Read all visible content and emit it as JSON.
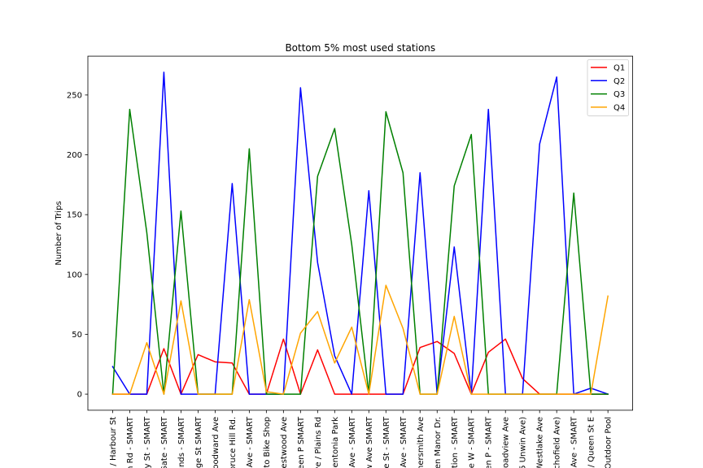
{
  "chart_data": {
    "type": "line",
    "title": "Bottom 5% most used stations",
    "xlabel": "",
    "ylabel": "Number of Trips",
    "ylim": [
      -13.45,
      282.45
    ],
    "yticks": [
      0,
      50,
      100,
      150,
      200,
      250
    ],
    "grid": false,
    "legend_position": "upper right",
    "categories": [
      "/ Harbour St",
      "n Rd - SMART",
      "y St - SMART",
      "Gate - SMART",
      "unds - SMART",
      "ge St SMART",
      "oodward Ave",
      "bruce Hill Rd.",
      "Ave - SMART",
      "to Bike Shop",
      "Westwood Ave",
      "een P SMART",
      "ve / Plains Rd",
      "ventonia Park",
      "Ave - SMART",
      "w Ave SMART",
      "e St - SMART",
      "Ave - SMART",
      "nersmith Ave",
      "en Manor Dr.",
      "tion - SMART",
      "e W - SMART",
      "en P - SMART",
      "roadview Ave",
      "5 Unwin Ave)",
      "Westlake Ave",
      "chofield Ave)",
      "Ave - SMART",
      "/ Queen St E",
      "Outdoor Pool"
    ],
    "series": [
      {
        "name": "Q1",
        "color": "#ff0000",
        "values": [
          0,
          0,
          0,
          38,
          0,
          33,
          27,
          26,
          0,
          0,
          46,
          0,
          37,
          0,
          0,
          0,
          0,
          0,
          39,
          44,
          34,
          0,
          35,
          46,
          13,
          0,
          0,
          0,
          0,
          0
        ]
      },
      {
        "name": "Q2",
        "color": "#0000ff",
        "values": [
          23,
          0,
          0,
          269,
          0,
          0,
          0,
          176,
          0,
          0,
          0,
          256,
          110,
          32,
          0,
          170,
          0,
          0,
          185,
          0,
          123,
          0,
          238,
          0,
          0,
          209,
          265,
          0,
          5,
          0
        ]
      },
      {
        "name": "Q3",
        "color": "#008000",
        "values": [
          0,
          238,
          135,
          0,
          153,
          0,
          0,
          0,
          205,
          0,
          0,
          0,
          182,
          222,
          125,
          0,
          236,
          185,
          0,
          0,
          174,
          217,
          0,
          0,
          0,
          0,
          0,
          168,
          0,
          0
        ]
      },
      {
        "name": "Q4",
        "color": "#ffa500",
        "values": [
          0,
          0,
          43,
          0,
          78,
          0,
          0,
          0,
          79,
          2,
          0,
          51,
          69,
          26,
          56,
          0,
          91,
          55,
          0,
          0,
          65,
          0,
          0,
          0,
          0,
          0,
          0,
          0,
          0,
          82
        ]
      }
    ]
  }
}
